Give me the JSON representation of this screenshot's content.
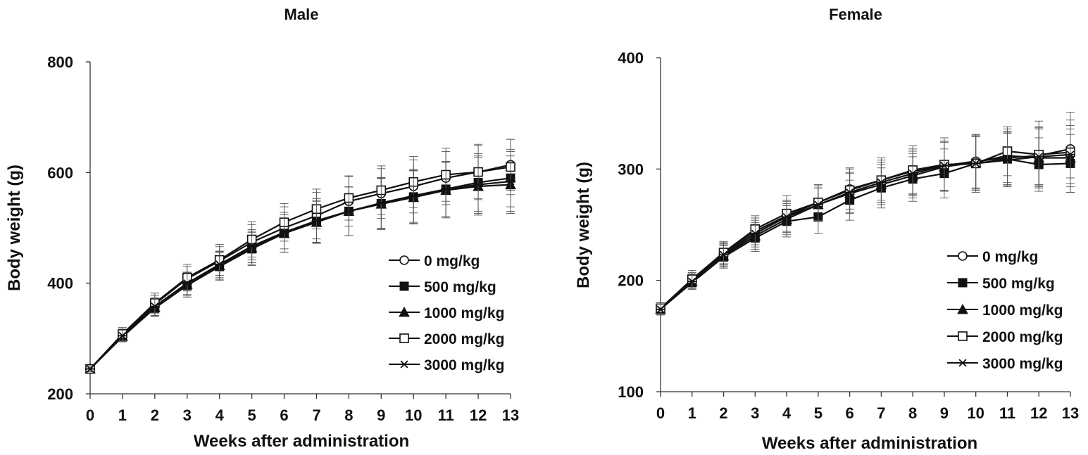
{
  "chart_data": [
    {
      "type": "line",
      "title": "Male",
      "xlabel": "Weeks after administration",
      "ylabel": "Body weight (g)",
      "x": [
        0,
        1,
        2,
        3,
        4,
        5,
        6,
        7,
        8,
        9,
        10,
        11,
        12,
        13
      ],
      "xlim": [
        0,
        13
      ],
      "ylim": [
        200,
        800
      ],
      "yticks": [
        200,
        400,
        600,
        800
      ],
      "error_bars": true,
      "legend_position": "right",
      "series": [
        {
          "name": "0 mg/kg",
          "marker": "open-circle",
          "values": [
            245,
            307,
            362,
            408,
            440,
            474,
            500,
            522,
            548,
            562,
            575,
            590,
            601,
            614
          ],
          "err": [
            6,
            10,
            16,
            22,
            26,
            32,
            38,
            42,
            45,
            45,
            48,
            48,
            48,
            46
          ]
        },
        {
          "name": "500 mg/kg",
          "marker": "filled-square",
          "values": [
            245,
            303,
            355,
            396,
            430,
            462,
            490,
            512,
            530,
            544,
            556,
            570,
            582,
            590
          ],
          "err": [
            5,
            9,
            15,
            22,
            25,
            30,
            34,
            38,
            44,
            46,
            48,
            50,
            52,
            52
          ]
        },
        {
          "name": "1000 mg/kg",
          "marker": "filled-triangle",
          "values": [
            245,
            304,
            356,
            398,
            432,
            464,
            490,
            510,
            530,
            543,
            555,
            568,
            575,
            578
          ],
          "err": [
            5,
            9,
            15,
            21,
            25,
            30,
            34,
            38,
            44,
            46,
            48,
            50,
            52,
            52
          ]
        },
        {
          "name": "2000 mg/kg",
          "marker": "open-square",
          "values": [
            245,
            308,
            364,
            410,
            442,
            479,
            510,
            534,
            554,
            568,
            583,
            596,
            601,
            610
          ],
          "err": [
            6,
            12,
            18,
            24,
            28,
            32,
            34,
            36,
            40,
            44,
            46,
            48,
            50,
            50
          ]
        },
        {
          "name": "3000 mg/kg",
          "marker": "star",
          "values": [
            245,
            305,
            358,
            400,
            434,
            467,
            492,
            513,
            530,
            545,
            558,
            570,
            578,
            584
          ],
          "err": [
            5,
            10,
            16,
            20,
            24,
            30,
            36,
            40,
            44,
            46,
            48,
            50,
            52,
            54
          ]
        }
      ]
    },
    {
      "type": "line",
      "title": "Female",
      "xlabel": "Weeks after administration",
      "ylabel": "Body weight (g)",
      "x": [
        0,
        1,
        2,
        3,
        4,
        5,
        6,
        7,
        8,
        9,
        10,
        11,
        12,
        13
      ],
      "xlim": [
        0,
        13
      ],
      "ylim": [
        100,
        400
      ],
      "yticks": [
        100,
        200,
        300,
        400
      ],
      "error_bars": true,
      "legend_position": "right",
      "series": [
        {
          "name": "0 mg/kg",
          "marker": "open-circle",
          "values": [
            175,
            200,
            224,
            244,
            258,
            270,
            282,
            290,
            298,
            303,
            307,
            310,
            312,
            318
          ],
          "err": [
            5,
            7,
            10,
            12,
            14,
            15,
            18,
            18,
            20,
            22,
            24,
            24,
            26,
            26
          ]
        },
        {
          "name": "500 mg/kg",
          "marker": "filled-square",
          "values": [
            174,
            198,
            221,
            238,
            253,
            257,
            272,
            283,
            291,
            296,
            305,
            309,
            304,
            305
          ],
          "err": [
            5,
            6,
            10,
            12,
            14,
            15,
            18,
            18,
            20,
            22,
            24,
            24,
            24,
            26
          ]
        },
        {
          "name": "1000 mg/kg",
          "marker": "filled-triangle",
          "values": [
            174,
            199,
            222,
            240,
            255,
            268,
            278,
            286,
            294,
            302,
            306,
            312,
            310,
            310
          ],
          "err": [
            5,
            6,
            10,
            12,
            14,
            15,
            18,
            18,
            20,
            22,
            24,
            24,
            26,
            26
          ]
        },
        {
          "name": "2000 mg/kg",
          "marker": "open-square",
          "values": [
            175,
            201,
            225,
            246,
            260,
            270,
            281,
            290,
            299,
            304,
            305,
            316,
            313,
            315
          ],
          "err": [
            5,
            8,
            10,
            12,
            16,
            16,
            20,
            20,
            22,
            24,
            26,
            22,
            30,
            36
          ]
        },
        {
          "name": "3000 mg/kg",
          "marker": "star",
          "values": [
            174,
            199,
            223,
            242,
            257,
            268,
            279,
            288,
            296,
            303,
            305,
            308,
            311,
            313
          ],
          "err": [
            5,
            7,
            10,
            12,
            14,
            15,
            18,
            18,
            20,
            22,
            24,
            24,
            26,
            26
          ]
        }
      ]
    }
  ]
}
